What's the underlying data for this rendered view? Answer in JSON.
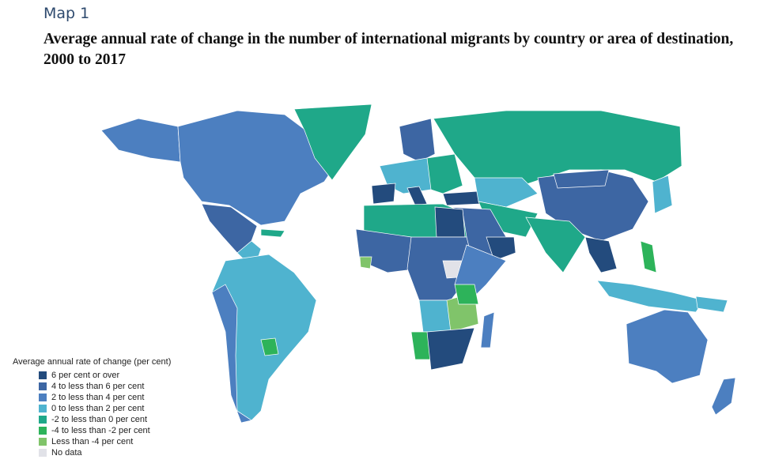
{
  "header": {
    "map_label": "Map 1",
    "title": "Average annual rate of change in the number of international migrants by country or area of destination, 2000 to 2017"
  },
  "legend": {
    "title": "Average annual rate of change (per cent)",
    "items": [
      {
        "label": "6 per cent or over",
        "color": "#234b7d"
      },
      {
        "label": "4 to less than 6 per cent",
        "color": "#3d66a3"
      },
      {
        "label": "2 to less than 4 per cent",
        "color": "#4c7fc0"
      },
      {
        "label": "0 to less than 2 per cent",
        "color": "#4fb3cf"
      },
      {
        "label": "-2 to less than 0 per cent",
        "color": "#1fa889"
      },
      {
        "label": "-4 to less than -2 per cent",
        "color": "#2db35a"
      },
      {
        "label": "Less than -4 per cent",
        "color": "#80c46a"
      },
      {
        "label": "No data",
        "color": "#e1e2e8"
      }
    ]
  }
}
